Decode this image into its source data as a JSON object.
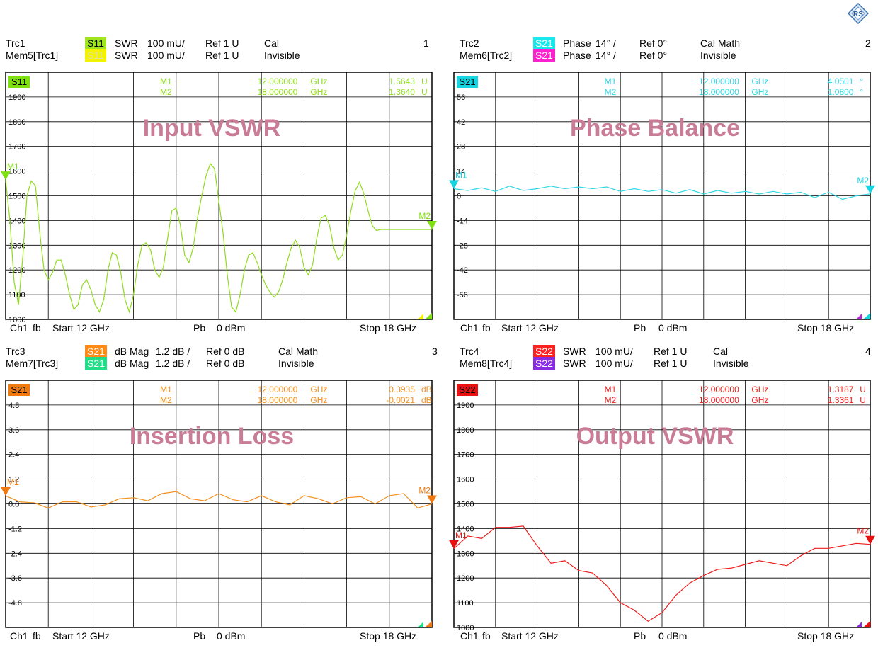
{
  "logo_icon": "rohde-schwarz-diamond-icon",
  "x_axis": {
    "start_ghz": 12,
    "stop_ghz": 18,
    "divisions": 10
  },
  "chart_data": [
    {
      "type": "line",
      "title": "Input VSWR",
      "panel_number": "1",
      "header": {
        "trace": "Trc1",
        "param": "S11",
        "param_color": "#9fe41f",
        "format": "SWR",
        "scale": "100 mU/",
        "ref": "Ref 1 U",
        "status": "Cal",
        "mem_trace": "Mem5[Trc1]",
        "mem_param": "S11",
        "mem_color": "#f3f300",
        "mem_format": "SWR",
        "mem_scale": "100 mU/",
        "mem_ref": "Ref 1 U",
        "mem_status": "Invisible"
      },
      "badge": "S11",
      "badge_color": "#7ee00e",
      "trace_color": "#8fdc1c",
      "ylim": [
        1000,
        2000
      ],
      "y_ticks": [
        "1900",
        "1800",
        "1700",
        "1600",
        "1500",
        "1400",
        "1300",
        "1200",
        "1100",
        "1000"
      ],
      "y_tick_values": [
        1900,
        1800,
        1700,
        1600,
        1500,
        1400,
        1300,
        1200,
        1100,
        1000
      ],
      "markers": [
        {
          "name": "M1",
          "freq": "12.000000",
          "unit": "GHz",
          "value": "1.5643",
          "vunit": "U",
          "x": 12.0,
          "y": 1564
        },
        {
          "name": "M2",
          "freq": "18.000000",
          "unit": "GHz",
          "value": "1.3640",
          "vunit": "U",
          "x": 18.0,
          "y": 1364
        }
      ],
      "mem_marker_colors": [
        "#f3f300",
        "#7ee00e"
      ],
      "series": [
        {
          "x": [
            12.0,
            12.06,
            12.12,
            12.18,
            12.24,
            12.3,
            12.36,
            12.42,
            12.48,
            12.54,
            12.6,
            12.66,
            12.72,
            12.78,
            12.84,
            12.9,
            12.96,
            13.02,
            13.08,
            13.14,
            13.2,
            13.26,
            13.32,
            13.38,
            13.44,
            13.5,
            13.56,
            13.62,
            13.68,
            13.74,
            13.8,
            13.86,
            13.92,
            13.98,
            14.04,
            14.1,
            14.16,
            14.22,
            14.28,
            14.34,
            14.4,
            14.46,
            14.52,
            14.58,
            14.64,
            14.7,
            14.76,
            14.82,
            14.88,
            14.94,
            15.0,
            15.06,
            15.12,
            15.18,
            15.24,
            15.3,
            15.36,
            15.42,
            15.48,
            15.54,
            15.6,
            15.66,
            15.72,
            15.78,
            15.84,
            15.9,
            15.96,
            16.02,
            16.08,
            16.14,
            16.2,
            16.26,
            16.32,
            16.38,
            16.44,
            16.5,
            16.56,
            16.62,
            16.68,
            16.74,
            16.8,
            16.86,
            16.92,
            16.98,
            17.04,
            17.1,
            17.16,
            17.22,
            17.28,
            17.34,
            17.4,
            17.46,
            17.52,
            17.58,
            17.64,
            17.7,
            17.76,
            17.82,
            17.88,
            17.94,
            18.0
          ],
          "values": [
            1564,
            1400,
            1150,
            1060,
            1250,
            1500,
            1560,
            1540,
            1350,
            1200,
            1160,
            1190,
            1240,
            1240,
            1180,
            1100,
            1040,
            1060,
            1140,
            1160,
            1120,
            1060,
            1030,
            1080,
            1200,
            1270,
            1260,
            1190,
            1080,
            1030,
            1100,
            1220,
            1300,
            1310,
            1280,
            1200,
            1170,
            1210,
            1330,
            1440,
            1450,
            1380,
            1260,
            1230,
            1290,
            1410,
            1500,
            1580,
            1630,
            1610,
            1480,
            1350,
            1180,
            1050,
            1030,
            1100,
            1200,
            1260,
            1270,
            1230,
            1180,
            1140,
            1110,
            1090,
            1110,
            1160,
            1230,
            1290,
            1320,
            1290,
            1210,
            1180,
            1220,
            1330,
            1410,
            1420,
            1380,
            1290,
            1240,
            1260,
            1340,
            1440,
            1520,
            1555,
            1510,
            1440,
            1380,
            1360,
            1364,
            1364,
            1364,
            1364,
            1364,
            1364,
            1364,
            1364,
            1364,
            1364,
            1364,
            1364,
            1364
          ]
        }
      ]
    },
    {
      "type": "line",
      "title": "Phase Balance",
      "panel_number": "2",
      "header": {
        "trace": "Trc2",
        "param": "S21",
        "param_color": "#18e8ec",
        "format": "Phase",
        "scale": "14° /",
        "ref": "Ref 0°",
        "status": "Cal Math",
        "mem_trace": "Mem6[Trc2]",
        "mem_param": "S21",
        "mem_color": "#ff22cc",
        "mem_format": "Phase",
        "mem_scale": "14° /",
        "mem_ref": "Ref 0°",
        "mem_status": "Invisible"
      },
      "badge": "S21",
      "badge_color": "#17d5e0",
      "trace_color": "#2fd8e4",
      "ylim": [
        -70,
        70
      ],
      "y_ticks": [
        "56",
        "42",
        "28",
        "14",
        "0",
        "-14",
        "-28",
        "-42",
        "-56"
      ],
      "y_tick_values": [
        56,
        42,
        28,
        14,
        0,
        -14,
        -28,
        -42,
        -56
      ],
      "markers": [
        {
          "name": "M1",
          "freq": "12.000000",
          "unit": "GHz",
          "value": "4.0501",
          "vunit": "°",
          "x": 12.0,
          "y": 4.05
        },
        {
          "name": "M2",
          "freq": "18.000000",
          "unit": "GHz",
          "value": "1.0800",
          "vunit": "°",
          "x": 18.0,
          "y": 1.08
        }
      ],
      "mem_marker_colors": [
        "#c020e0",
        "#17d5e0"
      ],
      "series": [
        {
          "x": [
            12.0,
            12.2,
            12.4,
            12.6,
            12.8,
            13.0,
            13.2,
            13.4,
            13.6,
            13.8,
            14.0,
            14.2,
            14.4,
            14.6,
            14.8,
            15.0,
            15.2,
            15.4,
            15.6,
            15.8,
            16.0,
            16.2,
            16.4,
            16.6,
            16.8,
            17.0,
            17.2,
            17.4,
            17.6,
            17.8,
            18.0
          ],
          "values": [
            4.0,
            3.0,
            4.5,
            2.5,
            5.5,
            3.0,
            4.0,
            5.5,
            4.0,
            5.0,
            4.0,
            5.0,
            2.5,
            4.0,
            2.5,
            3.5,
            1.5,
            3.5,
            1.0,
            3.0,
            1.5,
            2.5,
            1.0,
            2.5,
            1.0,
            2.0,
            -1.0,
            2.0,
            -2.0,
            0.0,
            1.08
          ]
        }
      ]
    },
    {
      "type": "line",
      "title": "Insertion Loss",
      "panel_number": "3",
      "header": {
        "trace": "Trc3",
        "param": "S21",
        "param_color": "#ff8a18",
        "format": "dB Mag",
        "scale": "1.2 dB /",
        "ref": "Ref 0 dB",
        "status": "Cal Math",
        "mem_trace": "Mem7[Trc3]",
        "mem_param": "S21",
        "mem_color": "#22dd88",
        "mem_format": "dB Mag",
        "mem_scale": "1.2 dB /",
        "mem_ref": "Ref 0 dB",
        "mem_status": "Invisible"
      },
      "badge": "S21",
      "badge_color": "#f07a10",
      "trace_color": "#f39020",
      "ylim": [
        -6,
        6
      ],
      "y_ticks": [
        "4.8",
        "3.6",
        "2.4",
        "1.2",
        "0.0",
        "-1.2",
        "-2.4",
        "-3.6",
        "-4.8"
      ],
      "y_tick_values": [
        4.8,
        3.6,
        2.4,
        1.2,
        0.0,
        -1.2,
        -2.4,
        -3.6,
        -4.8
      ],
      "markers": [
        {
          "name": "M1",
          "freq": "12.000000",
          "unit": "GHz",
          "value": "0.3935",
          "vunit": "dB",
          "x": 12.0,
          "y": 0.3935
        },
        {
          "name": "M2",
          "freq": "18.000000",
          "unit": "GHz",
          "value": "-0.0021",
          "vunit": "dB",
          "x": 18.0,
          "y": -0.0021
        }
      ],
      "mem_marker_colors": [
        "#22dd88",
        "#f07a10"
      ],
      "series": [
        {
          "x": [
            12.0,
            12.2,
            12.4,
            12.6,
            12.8,
            13.0,
            13.2,
            13.4,
            13.6,
            13.8,
            14.0,
            14.2,
            14.4,
            14.6,
            14.8,
            15.0,
            15.2,
            15.4,
            15.6,
            15.8,
            16.0,
            16.2,
            16.4,
            16.6,
            16.8,
            17.0,
            17.2,
            17.4,
            17.6,
            17.8,
            18.0
          ],
          "values": [
            0.39,
            0.1,
            0.05,
            -0.2,
            0.1,
            0.1,
            -0.15,
            -0.05,
            0.25,
            0.3,
            0.15,
            0.5,
            0.6,
            0.25,
            0.15,
            0.5,
            0.2,
            0.1,
            0.4,
            0.1,
            -0.05,
            0.4,
            0.25,
            0.0,
            0.3,
            0.35,
            0.0,
            0.4,
            0.5,
            -0.2,
            -0.0021
          ]
        }
      ]
    },
    {
      "type": "line",
      "title": "Output VSWR",
      "panel_number": "4",
      "header": {
        "trace": "Trc4",
        "param": "S22",
        "param_color": "#ff2020",
        "format": "SWR",
        "scale": "100 mU/",
        "ref": "Ref 1 U",
        "status": "Cal",
        "mem_trace": "Mem8[Trc4]",
        "mem_param": "S22",
        "mem_color": "#8a2be2",
        "mem_format": "SWR",
        "mem_scale": "100 mU/",
        "mem_ref": "Ref 1 U",
        "mem_status": "Invisible"
      },
      "badge": "S22",
      "badge_color": "#e81010",
      "trace_color": "#ee1c1c",
      "ylim": [
        1000,
        2000
      ],
      "y_ticks": [
        "1900",
        "1800",
        "1700",
        "1600",
        "1500",
        "1400",
        "1300",
        "1200",
        "1100",
        "1000"
      ],
      "y_tick_values": [
        1900,
        1800,
        1700,
        1600,
        1500,
        1400,
        1300,
        1200,
        1100,
        1000
      ],
      "markers": [
        {
          "name": "M1",
          "freq": "12.000000",
          "unit": "GHz",
          "value": "1.3187",
          "vunit": "U",
          "x": 12.0,
          "y": 1318.7
        },
        {
          "name": "M2",
          "freq": "18.000000",
          "unit": "GHz",
          "value": "1.3361",
          "vunit": "U",
          "x": 18.0,
          "y": 1336.1
        }
      ],
      "mem_marker_colors": [
        "#8a2be2",
        "#e81010"
      ],
      "series": [
        {
          "x": [
            12.0,
            12.2,
            12.4,
            12.6,
            12.8,
            13.0,
            13.2,
            13.4,
            13.6,
            13.8,
            14.0,
            14.2,
            14.4,
            14.6,
            14.8,
            15.0,
            15.2,
            15.4,
            15.6,
            15.8,
            16.0,
            16.2,
            16.4,
            16.6,
            16.8,
            17.0,
            17.2,
            17.4,
            17.6,
            17.8,
            18.0
          ],
          "values": [
            1319,
            1370,
            1360,
            1405,
            1405,
            1410,
            1330,
            1260,
            1270,
            1230,
            1220,
            1170,
            1100,
            1070,
            1025,
            1060,
            1130,
            1180,
            1210,
            1235,
            1240,
            1255,
            1270,
            1260,
            1250,
            1290,
            1320,
            1320,
            1330,
            1340,
            1336
          ]
        }
      ]
    }
  ],
  "footers": {
    "ch": "Ch1",
    "fb": "fb",
    "start": "Start  12 GHz",
    "pb": "Pb",
    "power": "0 dBm",
    "stop": "Stop  18 GHz"
  }
}
